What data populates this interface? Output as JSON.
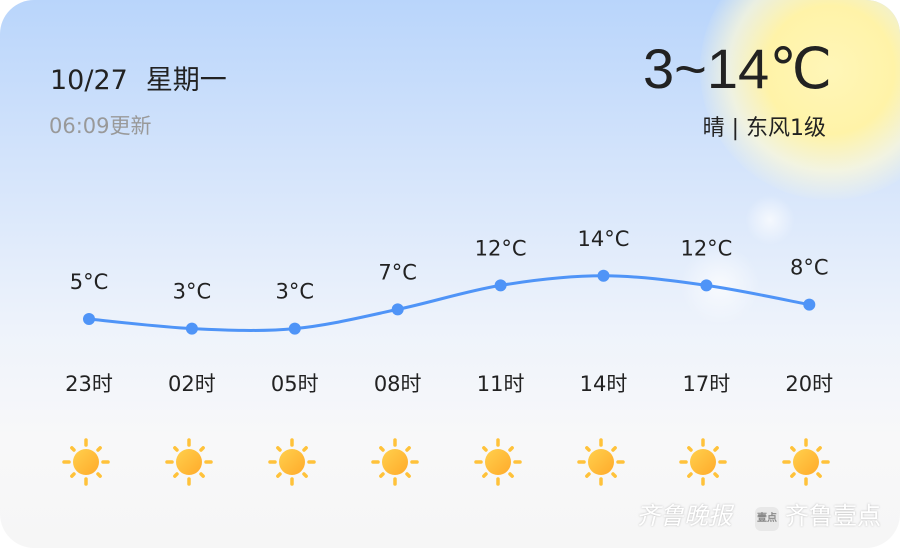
{
  "header": {
    "date": "10/27",
    "weekday": "星期一",
    "updated": "06:09更新",
    "temp_range": "3~14℃",
    "condition": "晴 | 东风1级"
  },
  "accent_color": "#4f94f7",
  "chart_data": {
    "type": "line",
    "categories": [
      "23时",
      "02时",
      "05时",
      "08时",
      "11时",
      "14时",
      "17时",
      "20时"
    ],
    "values": [
      5,
      3,
      3,
      7,
      12,
      14,
      12,
      8
    ],
    "labels": [
      "5°C",
      "3°C",
      "3°C",
      "7°C",
      "12°C",
      "14°C",
      "12°C",
      "8°C"
    ]
  },
  "icons": [
    "sun-icon",
    "sun-icon",
    "sun-icon",
    "sun-icon",
    "sun-icon",
    "sun-icon",
    "sun-icon",
    "sun-icon"
  ],
  "watermark": {
    "brand1": "齐鲁晚报",
    "brand2": "齐鲁壹点",
    "badge": "壹点"
  }
}
